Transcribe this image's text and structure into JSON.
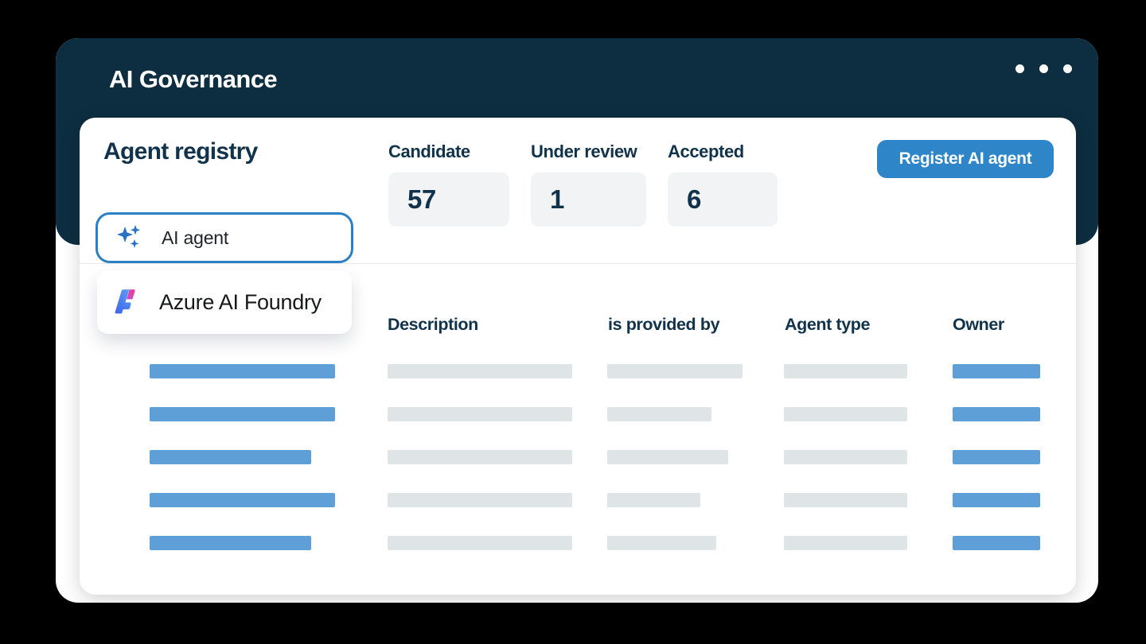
{
  "app": {
    "title": "AI Governance",
    "window_controls": {
      "dots_count": 3
    }
  },
  "registry": {
    "title": "Agent registry",
    "stats": [
      {
        "label": "Candidate",
        "value": "57"
      },
      {
        "label": "Under review",
        "value": "1"
      },
      {
        "label": "Accepted",
        "value": "6"
      }
    ],
    "register_button_label": "Register AI agent",
    "agent_combobox": {
      "value": "AI agent",
      "icon": "sparkles-icon"
    },
    "suggestion": {
      "label": "Azure AI Foundry",
      "icon": "azure-ai-foundry-logo"
    },
    "table": {
      "headers": [
        {
          "label": "Description"
        },
        {
          "label": "is provided by"
        },
        {
          "label": "Agent type"
        },
        {
          "label": "Owner"
        }
      ],
      "skeleton_rows": [
        {
          "name": 233,
          "description": 232,
          "provided_by": 170,
          "agent_type": 155,
          "owner": 110
        },
        {
          "name": 233,
          "description": 232,
          "provided_by": 131,
          "agent_type": 155,
          "owner": 110
        },
        {
          "name": 203,
          "description": 232,
          "provided_by": 152,
          "agent_type": 155,
          "owner": 110
        },
        {
          "name": 233,
          "description": 232,
          "provided_by": 117,
          "agent_type": 155,
          "owner": 110
        },
        {
          "name": 203,
          "description": 232,
          "provided_by": 137,
          "agent_type": 155,
          "owner": 110
        }
      ]
    }
  },
  "colors": {
    "titlebar_navy": "#0d2e41",
    "text_navy": "#10334b",
    "accent_blue": "#2e86c8",
    "combobox_border_blue": "#2b7fc4",
    "skeleton_blue": "#5f9fd7",
    "skeleton_gray": "#dfe4e7",
    "stat_box_bg": "#f1f3f4"
  }
}
